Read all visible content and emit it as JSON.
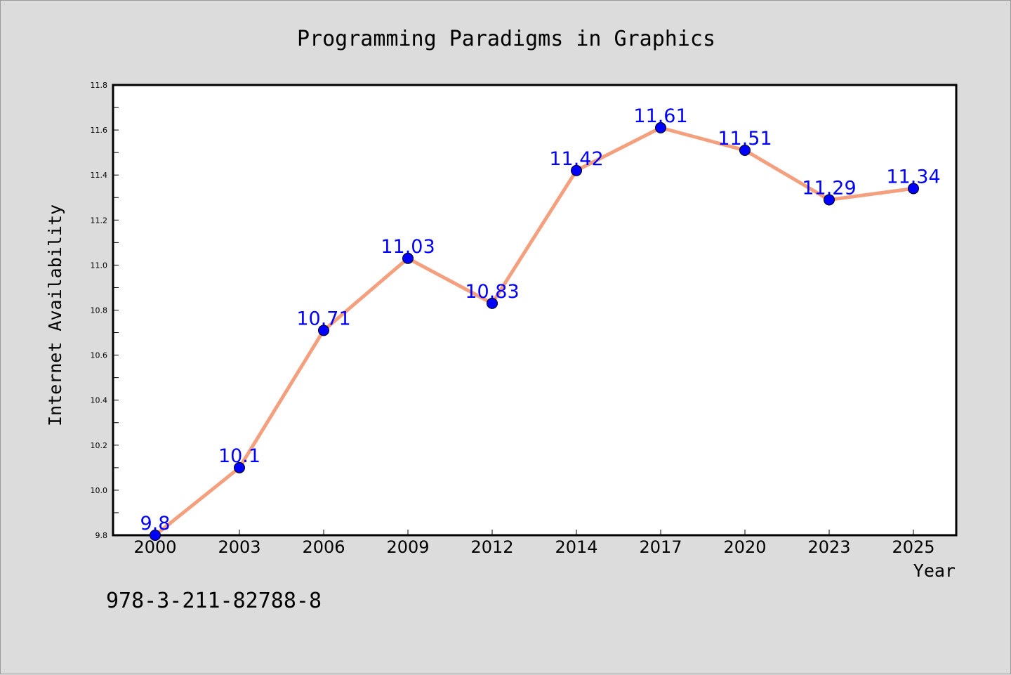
{
  "page": {
    "footer_code": "978-3-211-82788-8"
  },
  "colors": {
    "background": "#dcdcdc",
    "plot_area": "#ffffff",
    "line": "#f4a07e",
    "marker": "#0000ff",
    "data_label": "#0000ff",
    "text": "#000000"
  },
  "chart_data": {
    "type": "line",
    "title": "Programming Paradigms in Graphics",
    "xlabel": "Year",
    "ylabel": "Internet Availability",
    "categories": [
      "2000",
      "2003",
      "2006",
      "2009",
      "2012",
      "2014",
      "2017",
      "2020",
      "2023",
      "2025"
    ],
    "series": [
      {
        "values": [
          9.8,
          10.1,
          10.71,
          11.03,
          10.83,
          11.42,
          11.61,
          11.51,
          11.29,
          11.34
        ],
        "labels": [
          "9.8",
          "10.1",
          "10.71",
          "11.03",
          "10.83",
          "11.42",
          "11.61",
          "11.51",
          "11.29",
          "11.34"
        ]
      }
    ],
    "ylim": [
      9.8,
      11.8
    ],
    "yticks": [
      "9.8",
      "10.0",
      "10.2",
      "10.4",
      "10.6",
      "10.8",
      "11.0",
      "11.2",
      "11.4",
      "11.6",
      "11.8"
    ],
    "grid": false,
    "legend": "none"
  }
}
